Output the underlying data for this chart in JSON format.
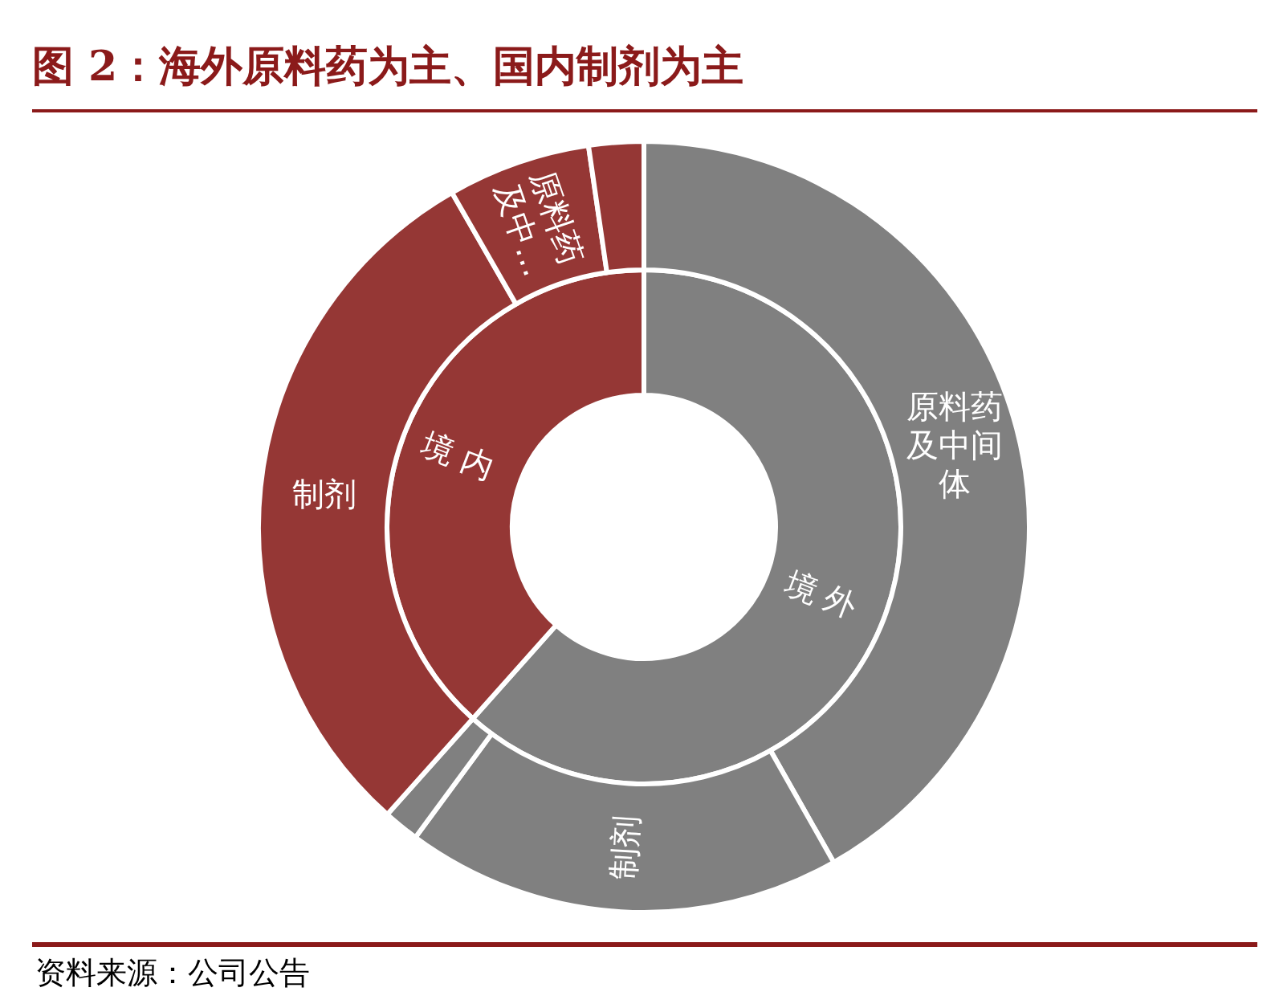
{
  "chart_data": [
    {
      "type": "donut",
      "title": "图 2：海外原料药为主、国内制剂为主",
      "annotations": [
        "资料来源：公司公告"
      ],
      "categories": [
        "境外",
        "境内"
      ],
      "values": [
        61.6,
        38.4
      ],
      "colors": [
        "#808080",
        "#953735"
      ]
    },
    {
      "type": "donut",
      "categories": [
        "原料药及中间体",
        "制剂",
        null,
        "制剂",
        "原料药及中…",
        null
      ],
      "values": [
        41.8,
        18.3,
        1.5,
        30.1,
        6.0,
        2.3
      ],
      "colors": [
        "#808080",
        "#808080",
        "#808080",
        "#953735",
        "#953735",
        "#953735"
      ]
    }
  ]
}
